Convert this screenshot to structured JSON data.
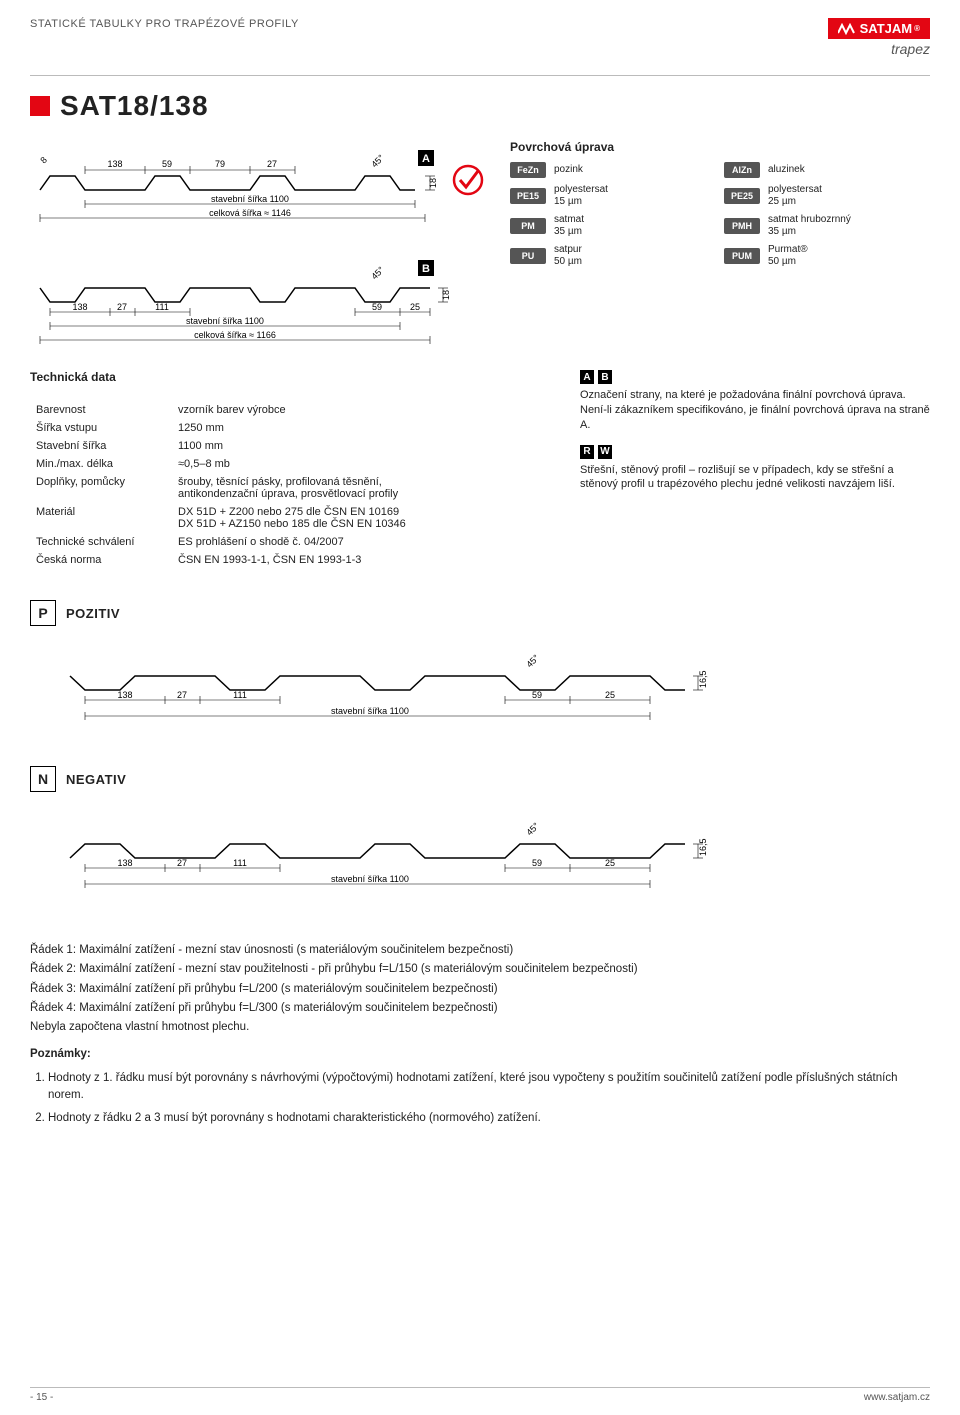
{
  "header": {
    "left": "STATICKÉ TABULKY PRO TRAPÉZOVÉ PROFILY",
    "brand": "SATJAM",
    "brand_sub": "trapez",
    "reg": "®"
  },
  "product_title": "SAT18/138",
  "diagram_A": {
    "dims": [
      "138",
      "59",
      "79",
      "27"
    ],
    "stavebni": "stavební šířka 1100",
    "celkova": "celková šířka ≈ 1146",
    "angle": "45°",
    "height": "18",
    "letter": "A",
    "extra_dim": "8"
  },
  "diagram_B": {
    "dims": [
      "138",
      "27",
      "111"
    ],
    "stavebni": "stavební šířka 1100",
    "celkova": "celková šířka ≈ 1166",
    "end_dims": [
      "59",
      "25"
    ],
    "angle": "45°",
    "height": "18",
    "letter": "B"
  },
  "surface": {
    "title": "Povrchová úprava",
    "items_left": [
      {
        "code": "FeZn",
        "label": "pozink"
      },
      {
        "code": "PE15",
        "label": "polyestersat\n15 µm"
      },
      {
        "code": "PM",
        "label": "satmat\n35 µm"
      },
      {
        "code": "PU",
        "label": "satpur\n50 µm"
      }
    ],
    "items_right": [
      {
        "code": "AlZn",
        "label": "aluzinek"
      },
      {
        "code": "PE25",
        "label": "polyestersat\n25 µm"
      },
      {
        "code": "PMH",
        "label": "satmat hrubozrnný\n35 µm"
      },
      {
        "code": "PUM",
        "label": "Purmat®\n50 µm"
      }
    ]
  },
  "tech": {
    "title": "Technická data",
    "rows": [
      [
        "Barevnost",
        "vzorník barev výrobce"
      ],
      [
        "Šířka vstupu",
        "1250 mm"
      ],
      [
        "Stavební šířka",
        "1100 mm"
      ],
      [
        "Min./max. délka",
        "≈0,5–8 mb"
      ],
      [
        "Doplňky, pomůcky",
        "šrouby, těsnící pásky, profilovaná těsnění,\nantikondenzační úprava, prosvětlovací profily"
      ],
      [
        "Materiál",
        "DX 51D + Z200 nebo 275 dle ČSN EN 10169\nDX 51D + AZ150 nebo 185 dle ČSN EN 10346"
      ],
      [
        "Technické schválení",
        "ES prohlášení o shodě č. 04/2007"
      ],
      [
        "Česká norma",
        "ČSN EN 1993-1-1, ČSN EN 1993-1-3"
      ]
    ]
  },
  "side_ab": {
    "letters": [
      "A",
      "B"
    ],
    "text": "Označení strany, na které je požadována finální povrchová úprava. Není-li zákazníkem specifikováno, je finální povrchová úprava na straně A."
  },
  "side_rw": {
    "letters": [
      "R",
      "W"
    ],
    "text": "Střešní, stěnový profil – rozlišují se v případech, kdy se střešní a stěnový profil u trapézového plechu jedné velikosti navzájem liší."
  },
  "pozitiv": {
    "letter": "P",
    "label": "POZITIV",
    "dims": [
      "138",
      "27",
      "111"
    ],
    "stavebni": "stavební šířka 1100",
    "end_dims": [
      "59",
      "25"
    ],
    "angle": "45°",
    "height": "16,5"
  },
  "negativ": {
    "letter": "N",
    "label": "NEGATIV",
    "dims": [
      "138",
      "27",
      "111"
    ],
    "stavebni": "stavební šířka 1100",
    "end_dims": [
      "59",
      "25"
    ],
    "angle": "45°",
    "height": "16,5"
  },
  "notes": {
    "lines": [
      "Řádek 1: Maximální zatížení  - mezní stav únosnosti (s materiálovým součinitelem bezpečnosti)",
      "Řádek 2: Maximální zatížení  - mezní stav použitelnosti - při průhybu f=L/150 (s materiálovým součinitelem bezpečnosti)",
      "Řádek 3: Maximální zatížení při průhybu f=L/200 (s materiálovým součinitelem bezpečnosti)",
      "Řádek 4: Maximální zatížení při průhybu f=L/300 (s materiálovým součinitelem bezpečnosti)",
      "Nebyla započtena vlastní hmotnost plechu."
    ],
    "subhead": "Poznámky:",
    "ol": [
      "Hodnoty z 1. řádku musí být porovnány s návrhovými (výpočtovými) hodnotami  zatížení, které jsou vypočteny s použitím součinitelů zatížení podle příslušných státních norem.",
      "Hodnoty z řádku 2 a 3 musí být porovnány s hodnotami charakteristického (normového) zatížení."
    ]
  },
  "footer": {
    "left": "- 15 -",
    "right": "www.satjam.cz"
  },
  "colors": {
    "red": "#e30613",
    "grey": "#555555"
  }
}
